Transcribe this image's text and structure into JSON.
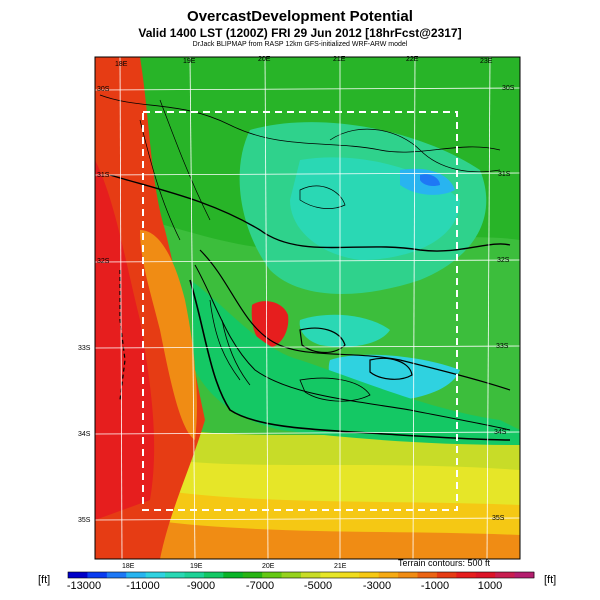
{
  "header": {
    "title": "OvercastDevelopment Potential",
    "subtitle": "Valid 1400 LST (1200Z) FRI 29 Jun 2012 [18hrFcst@2317]",
    "credit": "DrJack BLIPMAP from RASP 12km GFS-initialized WRF-ARW model"
  },
  "map": {
    "lon_labels_top": [
      "18E",
      "19E",
      "20E",
      "21E",
      "22E",
      "23E"
    ],
    "lon_labels_bottom": [
      "18E",
      "19E",
      "20E",
      "21E"
    ],
    "lat_labels_left": [
      "30S",
      "31S",
      "32S",
      "33S",
      "34S",
      "35S"
    ],
    "lat_labels_right": [
      "30S",
      "31S",
      "32S",
      "33S",
      "34S",
      "35S"
    ],
    "terrain_note": "Terrain contours: 500 ft"
  },
  "colorbar": {
    "unit_left": "[ft]",
    "unit_right": "[ft]",
    "tick_labels": [
      "-13000",
      "-11000",
      "-9000",
      "-7000",
      "-5000",
      "-3000",
      "-1000",
      "1000"
    ],
    "colors": [
      "#0000c8",
      "#0a3cf0",
      "#1e78f5",
      "#28b4f0",
      "#2fd2e0",
      "#2ad8b4",
      "#1ed296",
      "#14c864",
      "#0ab428",
      "#28b414",
      "#64c814",
      "#96d21e",
      "#c8dc28",
      "#e6e628",
      "#f0dc1e",
      "#f5c814",
      "#f5aa14",
      "#f08c14",
      "#eb6414",
      "#e63c14",
      "#e61e1e",
      "#dc1428",
      "#c81e50",
      "#b41e6e"
    ]
  }
}
